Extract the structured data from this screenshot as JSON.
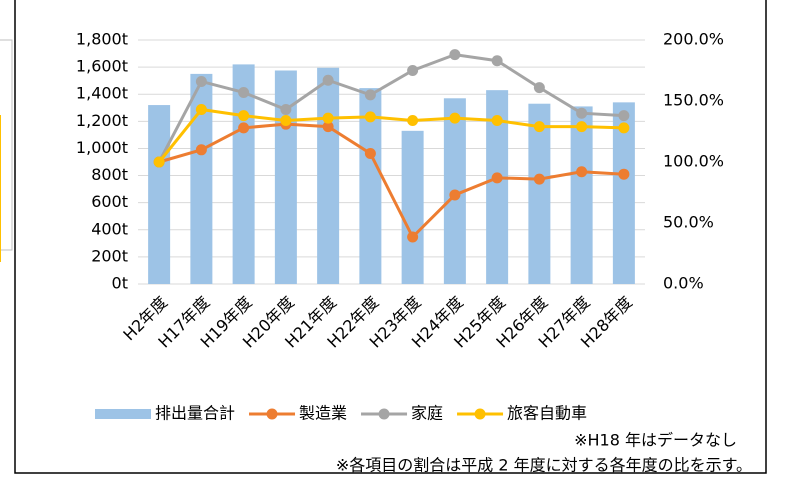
{
  "chart_data": {
    "type": "bar",
    "categories": [
      "H2年度",
      "H17年度",
      "H19年度",
      "H20年度",
      "H21年度",
      "H22年度",
      "H23年度",
      "H24年度",
      "H25年度",
      "H26年度",
      "H27年度",
      "H28年度"
    ],
    "series": [
      {
        "name": "排出量合計",
        "type": "bar",
        "color": "#9dc3e6",
        "values": [
          1320,
          1550,
          1620,
          1575,
          1595,
          1445,
          1130,
          1370,
          1430,
          1330,
          1310,
          1340
        ]
      },
      {
        "name": "製造業",
        "type": "line",
        "axis": "y2",
        "color": "#ed7d31",
        "values": [
          100,
          110,
          128,
          131,
          129,
          107,
          38.5,
          73,
          87,
          86,
          92,
          90
        ]
      },
      {
        "name": "家庭",
        "type": "line",
        "axis": "y2",
        "color": "#a5a5a5",
        "values": [
          100,
          166,
          157,
          143,
          167,
          155,
          175,
          188,
          183,
          161,
          140,
          138
        ]
      },
      {
        "name": "旅客自動車",
        "type": "line",
        "axis": "y2",
        "color": "#ffc000",
        "values": [
          100,
          143,
          138,
          134,
          136,
          137,
          134,
          136,
          134,
          129,
          129,
          128
        ]
      }
    ],
    "ylim": [
      0,
      1800
    ],
    "yticks": [
      {
        "value": 0,
        "label": "0t"
      },
      {
        "value": 200,
        "label": "200t"
      },
      {
        "value": 400,
        "label": "400t"
      },
      {
        "value": 600,
        "label": "600t"
      },
      {
        "value": 800,
        "label": "800t"
      },
      {
        "value": 1000,
        "label": "1,000t"
      },
      {
        "value": 1200,
        "label": "1,200t"
      },
      {
        "value": 1400,
        "label": "1,400t"
      },
      {
        "value": 1600,
        "label": "1,600t"
      },
      {
        "value": 1800,
        "label": "1,800t"
      }
    ],
    "y2lim": [
      0,
      200
    ],
    "y2ticks": [
      {
        "value": 0,
        "label": "0.0%"
      },
      {
        "value": 50,
        "label": "50.0%"
      },
      {
        "value": 100,
        "label": "100.0%"
      },
      {
        "value": 150,
        "label": "150.0%"
      },
      {
        "value": 200,
        "label": "200.0%"
      }
    ],
    "grid": true,
    "legend": "bottom",
    "notes": [
      "※H18 年はデータなし",
      "※各項目の割合は平成 2 年度に対する各年度の比を示す。"
    ]
  }
}
